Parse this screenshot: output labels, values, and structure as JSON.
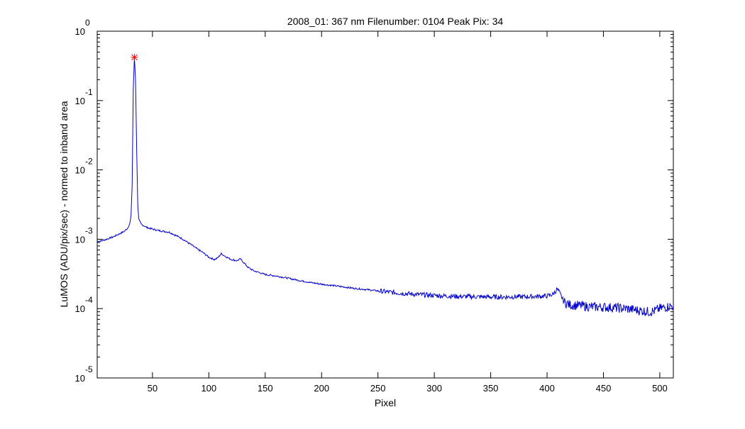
{
  "chart_data": {
    "type": "line",
    "title": "2008_01: 367 nm  Filenumber: 0104 Peak Pix: 34",
    "xlabel": "Pixel",
    "ylabel": "LuMOS (ADU/pix/sec) - normed to inband area",
    "xlim": [
      1,
      512
    ],
    "ylim": [
      1e-05,
      1
    ],
    "yscale": "log",
    "grid": false,
    "x_ticks": [
      50,
      100,
      150,
      200,
      250,
      300,
      350,
      400,
      450,
      500
    ],
    "y_ticks": [
      {
        "value": 1,
        "base": "10",
        "exp": "0"
      },
      {
        "value": 0.1,
        "base": "10",
        "exp": "-1"
      },
      {
        "value": 0.01,
        "base": "10",
        "exp": "-2"
      },
      {
        "value": 0.001,
        "base": "10",
        "exp": "-3"
      },
      {
        "value": 0.0001,
        "base": "10",
        "exp": "-4"
      },
      {
        "value": 1e-05,
        "base": "10",
        "exp": "-5"
      }
    ],
    "series": [
      {
        "color": "#0000cc",
        "points": [
          [
            1,
            0.00093
          ],
          [
            5,
            0.00095
          ],
          [
            10,
            0.00101
          ],
          [
            15,
            0.00108
          ],
          [
            20,
            0.00118
          ],
          [
            25,
            0.0013
          ],
          [
            28,
            0.00145
          ],
          [
            30,
            0.0017
          ],
          [
            31,
            0.0022
          ],
          [
            32,
            0.006
          ],
          [
            33,
            0.15
          ],
          [
            34,
            0.42
          ],
          [
            35,
            0.2
          ],
          [
            36,
            0.02
          ],
          [
            37,
            0.003
          ],
          [
            38,
            0.0019
          ],
          [
            40,
            0.00165
          ],
          [
            45,
            0.00148
          ],
          [
            50,
            0.0014
          ],
          [
            55,
            0.00134
          ],
          [
            60,
            0.0013
          ],
          [
            65,
            0.00126
          ],
          [
            70,
            0.00115
          ],
          [
            75,
            0.00105
          ],
          [
            80,
            0.00093
          ],
          [
            85,
            0.00082
          ],
          [
            90,
            0.00072
          ],
          [
            95,
            0.00064
          ],
          [
            100,
            0.00055
          ],
          [
            105,
            0.00051
          ],
          [
            108,
            0.00054
          ],
          [
            111,
            0.00062
          ],
          [
            113,
            0.00059
          ],
          [
            116,
            0.00055
          ],
          [
            120,
            0.00051
          ],
          [
            125,
            0.00049
          ],
          [
            128,
            0.00052
          ],
          [
            131,
            0.00046
          ],
          [
            135,
            0.00039
          ],
          [
            140,
            0.00035
          ],
          [
            145,
            0.00033
          ],
          [
            150,
            0.00031
          ],
          [
            160,
            0.000295
          ],
          [
            170,
            0.000275
          ],
          [
            180,
            0.000255
          ],
          [
            190,
            0.000238
          ],
          [
            200,
            0.000225
          ],
          [
            210,
            0.000215
          ],
          [
            220,
            0.000205
          ],
          [
            230,
            0.000195
          ],
          [
            240,
            0.000188
          ],
          [
            250,
            0.00018
          ],
          [
            260,
            0.000173
          ],
          [
            270,
            0.000167
          ],
          [
            280,
            0.000162
          ],
          [
            290,
            0.000158
          ],
          [
            300,
            0.000155
          ],
          [
            310,
            0.000152
          ],
          [
            320,
            0.00015
          ],
          [
            330,
            0.000149
          ],
          [
            340,
            0.000148
          ],
          [
            350,
            0.000147
          ],
          [
            360,
            0.000147
          ],
          [
            370,
            0.000148
          ],
          [
            380,
            0.000148
          ],
          [
            390,
            0.00015
          ],
          [
            400,
            0.000152
          ],
          [
            405,
            0.00016
          ],
          [
            409,
            0.00019
          ],
          [
            411,
            0.00017
          ],
          [
            415,
            0.000125
          ],
          [
            420,
            0.000113
          ],
          [
            430,
            0.00011
          ],
          [
            440,
            0.000106
          ],
          [
            450,
            0.000105
          ],
          [
            460,
            0.000103
          ],
          [
            470,
            0.0001
          ],
          [
            480,
            9.5e-05
          ],
          [
            490,
            9e-05
          ],
          [
            495,
            9.2e-05
          ],
          [
            500,
            0.0001
          ],
          [
            505,
            0.000105
          ],
          [
            512,
            0.00011
          ]
        ]
      }
    ],
    "peak_marker": {
      "x": 34,
      "y": 0.42,
      "color": "#ff0000",
      "symbol": "*"
    }
  }
}
